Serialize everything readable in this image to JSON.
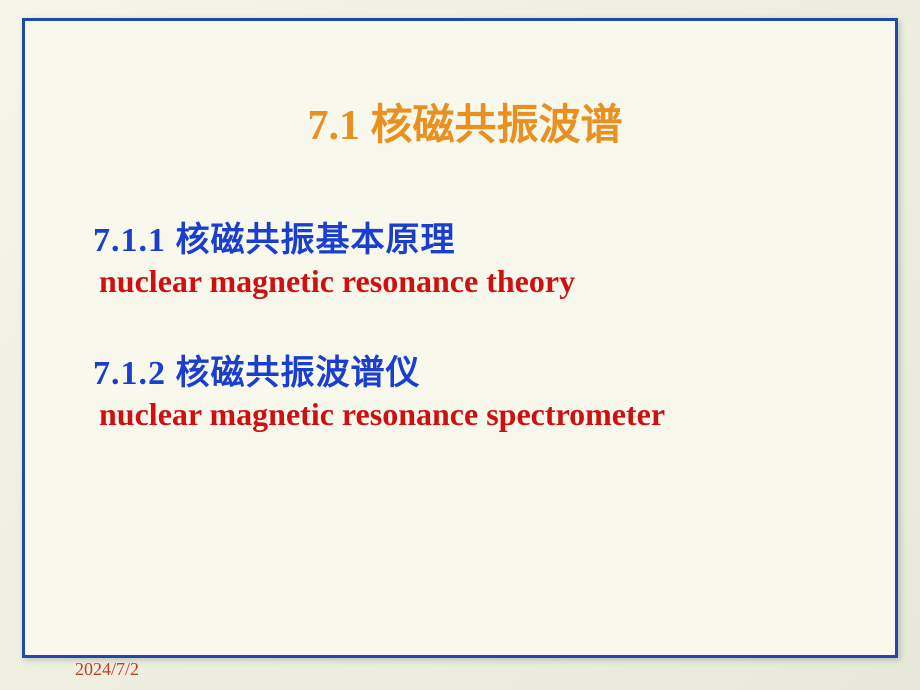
{
  "slide": {
    "title": "7.1  核磁共振波谱",
    "sections": [
      {
        "heading": "7.1.1 核磁共振基本原理",
        "sub": "nuclear magnetic resonance theory"
      },
      {
        "heading": "7.1.2 核磁共振波谱仪",
        "sub": "nuclear magnetic resonance spectrometer"
      }
    ],
    "date": "2024/7/2",
    "colors": {
      "title_color": "#e89020",
      "heading_color": "#1a3fcf",
      "sub_color": "#d01010",
      "border_color": "#1e4ba8",
      "date_color": "#c04020",
      "background": "#f8f8ed"
    },
    "typography": {
      "title_fontsize": 42,
      "heading_fontsize": 34,
      "sub_fontsize": 32,
      "date_fontsize": 18
    }
  }
}
